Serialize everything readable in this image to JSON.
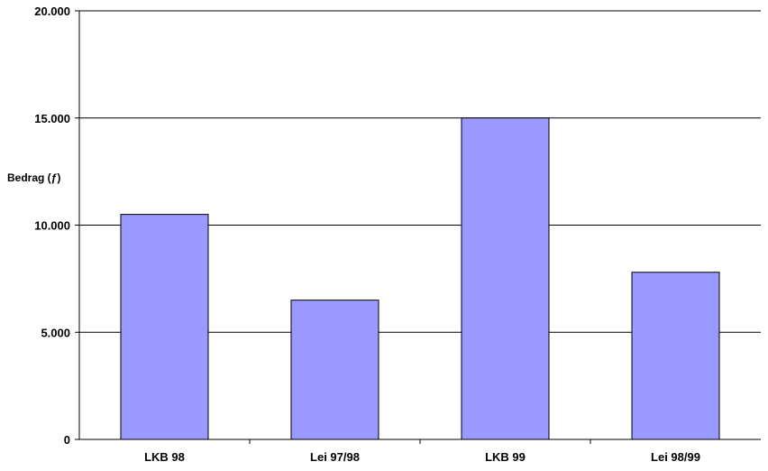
{
  "chart_data": {
    "type": "bar",
    "title": "",
    "xlabel": "",
    "ylabel": "Bedrag (ƒ)",
    "categories": [
      "LKB 98",
      "Lei 97/98",
      "LKB 99",
      "Lei 98/99"
    ],
    "values": [
      10500,
      6500,
      15000,
      7800
    ],
    "ylim": [
      0,
      20000
    ],
    "yticks": [
      0,
      5000,
      10000,
      15000,
      20000
    ],
    "ytick_labels": [
      "0",
      "5.000",
      "10.000",
      "15.000",
      "20.000"
    ],
    "grid": true,
    "legend": "none",
    "bar_color": "#9999ff",
    "bar_edge_color": "#000000"
  }
}
